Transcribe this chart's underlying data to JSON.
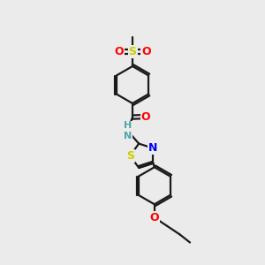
{
  "background_color": "#ebebeb",
  "bond_color": "#1a1a1a",
  "bond_width": 1.6,
  "colors": {
    "N": "#0000ff",
    "O": "#ff0000",
    "S": "#cccc00",
    "H": "#4da6a6",
    "C": "#1a1a1a"
  },
  "figsize": [
    3.0,
    3.0
  ],
  "dpi": 100,
  "xlim": [
    0,
    10
  ],
  "ylim": [
    0,
    10
  ]
}
